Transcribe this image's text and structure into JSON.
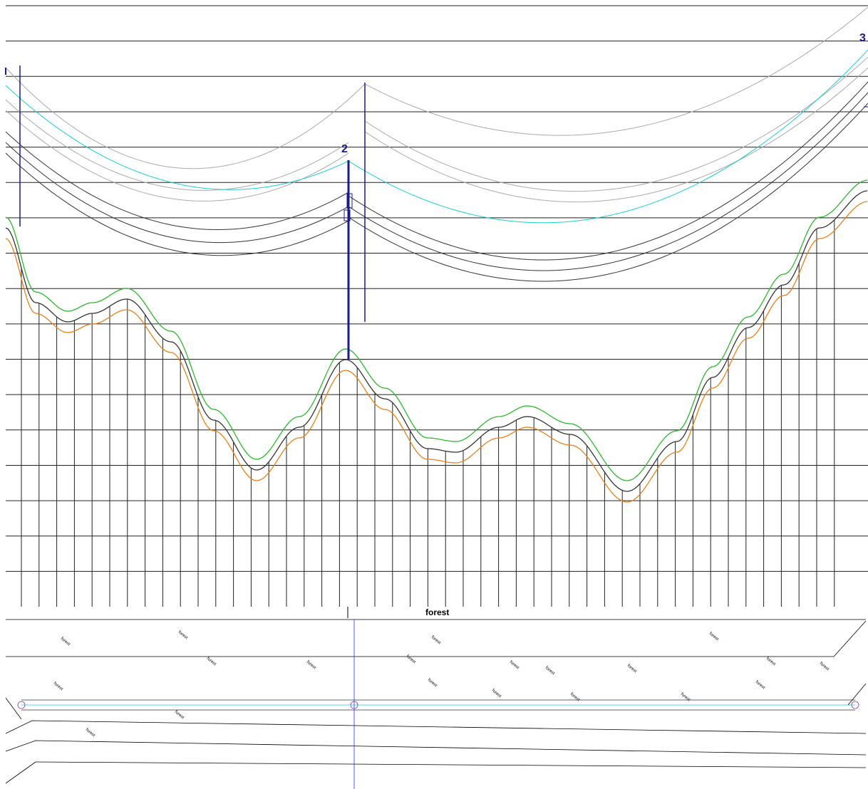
{
  "profile": {
    "tower_labels": [
      "2",
      "3"
    ],
    "section_label": "forest"
  },
  "plan": {
    "area_labels": [
      "forest",
      "forest",
      "forest",
      "forest",
      "forest",
      "forest",
      "forest",
      "forest",
      "forest",
      "forest",
      "forest",
      "forest",
      "forest",
      "forest",
      "forest",
      "forest",
      "forest",
      "forest",
      "forest",
      "forest"
    ]
  }
}
